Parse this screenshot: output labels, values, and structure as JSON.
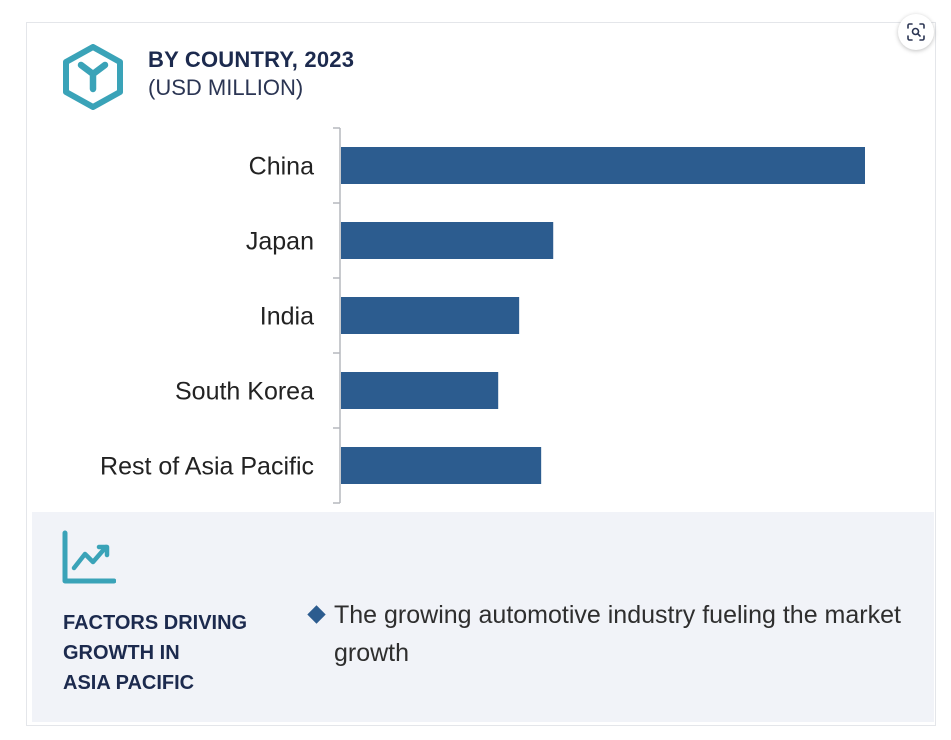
{
  "header": {
    "title": "BY COUNTRY, 2023",
    "subtitle": "(USD MILLION)"
  },
  "chart_data": {
    "type": "bar",
    "orientation": "horizontal",
    "categories": [
      "China",
      "Japan",
      "India",
      "South Korea",
      "Rest of Asia Pacific"
    ],
    "values": [
      100,
      40.5,
      34,
      30,
      38.2
    ],
    "xlim": [
      0,
      100
    ],
    "grid": false,
    "bar_color": "#2c5c8f"
  },
  "factors": {
    "title_lines": [
      "FACTORS DRIVING",
      "GROWTH IN",
      "ASIA PACIFIC"
    ],
    "items": [
      {
        "text": "The growing automotive industry fueling the market growth"
      }
    ]
  },
  "colors": {
    "accent": "#3aa3b8",
    "navy": "#1c2a4e",
    "bar": "#2c5c8f",
    "panel": "#f1f3f8"
  },
  "icons": {
    "logo": "cube-y-logo-icon",
    "trend": "trend-line-icon",
    "scan": "image-search-icon"
  }
}
